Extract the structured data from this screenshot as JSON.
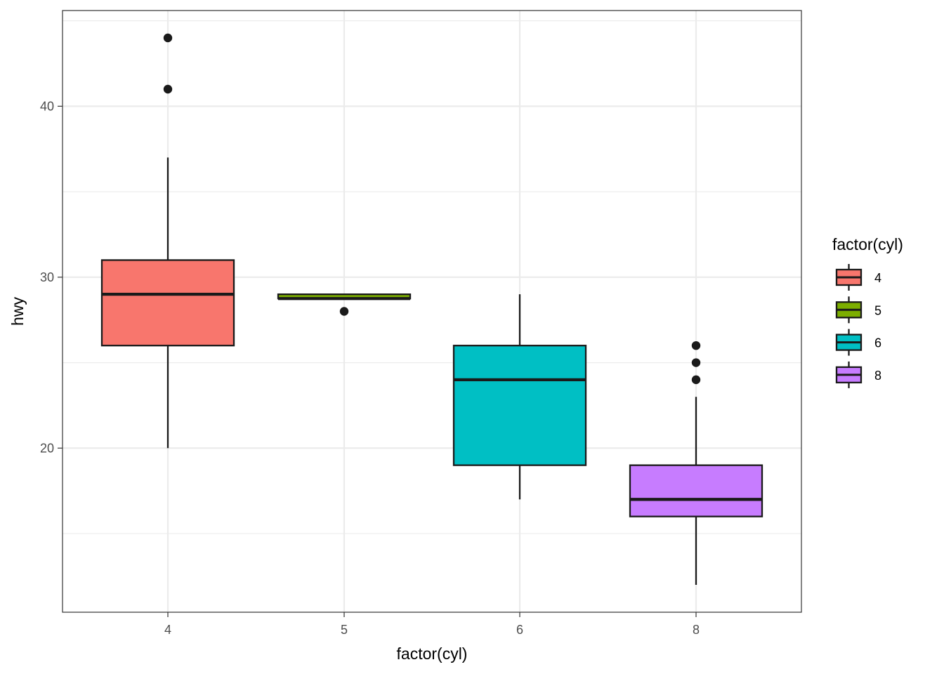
{
  "chart_data": {
    "type": "boxplot",
    "xlabel": "factor(cyl)",
    "ylabel": "hwy",
    "categories": [
      "4",
      "5",
      "6",
      "8"
    ],
    "ylim": [
      10.4,
      45.6
    ],
    "y_ticks": [
      20,
      30,
      40
    ],
    "y_minor_ticks": [
      15,
      25,
      35,
      45
    ],
    "grid": true,
    "legend": {
      "title": "factor(cyl)",
      "position": "right",
      "entries": [
        "4",
        "5",
        "6",
        "8"
      ]
    },
    "colors": [
      "#F8766D",
      "#7CAE00",
      "#00BFC4",
      "#C77CFF"
    ],
    "boxes": [
      {
        "category": "4",
        "whisker_low": 20,
        "q1": 26,
        "median": 29,
        "q3": 31,
        "whisker_high": 37,
        "outliers": [
          41,
          44
        ]
      },
      {
        "category": "5",
        "whisker_low": 28.75,
        "q1": 28.75,
        "median": 28.75,
        "q3": 29,
        "whisker_high": 29,
        "outliers": [
          28
        ]
      },
      {
        "category": "6",
        "whisker_low": 17,
        "q1": 19,
        "median": 24,
        "q3": 26,
        "whisker_high": 29,
        "outliers": []
      },
      {
        "category": "8",
        "whisker_low": 12,
        "q1": 16,
        "median": 17,
        "q3": 19,
        "whisker_high": 23,
        "outliers": [
          24,
          25,
          26
        ]
      }
    ]
  }
}
